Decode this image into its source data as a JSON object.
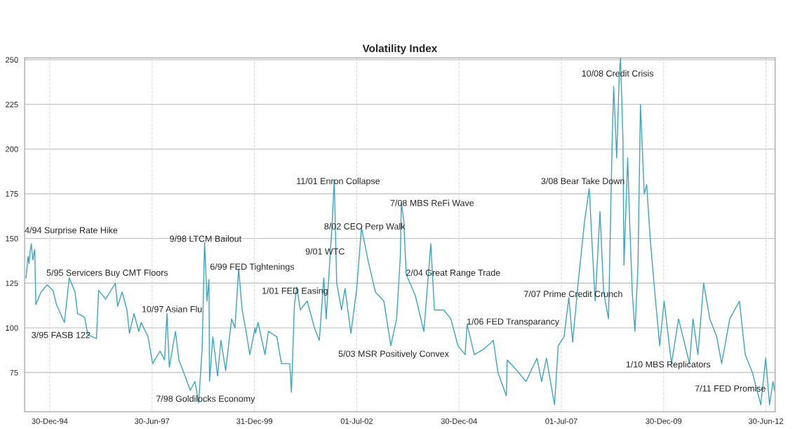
{
  "chart_data": {
    "type": "line",
    "title": "Volatility Index",
    "x": [
      "1994-06-01",
      "1994-06-20",
      "1994-06-28",
      "1994-07-08",
      "1994-07-18",
      "1994-08-01",
      "1994-08-18",
      "1994-08-28",
      "1994-10-13",
      "1994-12-06",
      "1995-01-28",
      "1995-02-28",
      "1995-05-10",
      "1995-06-22",
      "1995-08-13",
      "1995-09-04",
      "1995-11-06",
      "1995-12-06",
      "1996-02-20",
      "1996-03-10",
      "1996-05-12",
      "1996-08-06",
      "1996-08-27",
      "1996-10-06",
      "1996-11-18",
      "1996-12-10",
      "1997-01-20",
      "1997-03-03",
      "1997-03-25",
      "1997-05-25",
      "1997-07-05",
      "1997-09-10",
      "1997-10-20",
      "1997-11-10",
      "1997-12-01",
      "1998-01-25",
      "1998-02-25",
      "1998-04-27",
      "1998-06-06",
      "1998-07-18",
      "1998-08-20",
      "1998-09-20",
      "1998-10-12",
      "1998-11-03",
      "1998-11-20",
      "1998-11-25",
      "1998-12-25",
      "1999-02-05",
      "1999-03-07",
      "1999-04-18",
      "1999-06-10",
      "1999-07-10",
      "1999-08-12",
      "1999-09-12",
      "1999-10-12",
      "1999-11-20",
      "2000-01-05",
      "2000-01-10",
      "2000-02-01",
      "2000-04-03",
      "2000-05-03",
      "2000-07-18",
      "2000-08-28",
      "2000-11-10",
      "2000-11-25",
      "2000-12-22",
      "2001-01-12",
      "2001-02-12",
      "2001-04-15",
      "2001-06-18",
      "2001-08-01",
      "2001-09-10",
      "2001-10-01",
      "2001-11-25",
      "2001-12-12",
      "2002-01-03",
      "2002-02-15",
      "2002-03-18",
      "2002-05-10",
      "2002-07-01",
      "2002-08-12",
      "2002-10-12",
      "2002-12-15",
      "2003-02-28",
      "2003-05-01",
      "2003-06-22",
      "2003-07-25",
      "2003-08-03",
      "2003-08-25",
      "2003-09-15",
      "2003-12-06",
      "2004-02-20",
      "2004-04-22",
      "2004-05-24",
      "2004-08-15",
      "2004-10-18",
      "2004-12-20",
      "2005-02-22",
      "2005-03-12",
      "2005-05-15",
      "2005-08-06",
      "2005-11-01",
      "2005-12-12",
      "2006-02-25",
      "2006-03-05",
      "2006-05-05",
      "2006-08-20",
      "2006-11-25",
      "2007-01-06",
      "2007-02-18",
      "2007-05-01",
      "2007-06-03",
      "2007-07-25",
      "2007-09-06",
      "2007-10-10",
      "2007-12-01",
      "2008-01-25",
      "2008-03-06",
      "2008-04-06",
      "2008-04-28",
      "2008-06-10",
      "2008-07-12",
      "2008-08-25",
      "2008-09-25",
      "2008-10-10",
      "2008-11-06",
      "2008-11-28",
      "2008-12-10",
      "2009-01-01",
      "2009-01-10",
      "2009-02-12",
      "2009-03-04",
      "2009-03-25",
      "2009-04-18",
      "2009-05-15",
      "2009-06-06",
      "2009-07-10",
      "2009-08-01",
      "2009-09-01",
      "2009-10-12",
      "2009-11-25",
      "2010-01-03",
      "2010-03-10",
      "2010-05-12",
      "2010-08-18",
      "2010-09-18",
      "2010-11-01",
      "2010-12-22",
      "2011-02-15",
      "2011-04-18",
      "2011-06-01",
      "2011-08-12",
      "2011-11-06",
      "2011-12-28",
      "2012-03-01",
      "2012-05-15",
      "2012-06-28",
      "2012-08-01",
      "2012-09-01",
      "2012-09-15"
    ],
    "series": [
      {
        "color": "#3aa6c0",
        "values": [
          128,
          140,
          136,
          143,
          147,
          138,
          144,
          113,
          120,
          124,
          121,
          113,
          103,
          128,
          120,
          108,
          106,
          96,
          94,
          121,
          116,
          125,
          112,
          120,
          110,
          97,
          108,
          98,
          103,
          95,
          80,
          87,
          82,
          108,
          78,
          98,
          82,
          72,
          65,
          70,
          58,
          88,
          148,
          115,
          127,
          70,
          95,
          73,
          93,
          76,
          105,
          100,
          133,
          110,
          100,
          85,
          100,
          97,
          103,
          85,
          98,
          95,
          80,
          80,
          64,
          113,
          123,
          110,
          115,
          100,
          93,
          128,
          105,
          160,
          183,
          125,
          110,
          122,
          97,
          122,
          156,
          137,
          120,
          115,
          90,
          105,
          140,
          170,
          160,
          130,
          118,
          98,
          147,
          110,
          110,
          105,
          90,
          85,
          102,
          85,
          88,
          93,
          75,
          62,
          82,
          78,
          70,
          83,
          70,
          83,
          57,
          90,
          95,
          117,
          92,
          127,
          160,
          178,
          140,
          115,
          165,
          120,
          105,
          200,
          235,
          195,
          240,
          251,
          205,
          135,
          195,
          155,
          120,
          98,
          135,
          225,
          175,
          180,
          150,
          120,
          90,
          115,
          80,
          105,
          80,
          105,
          85,
          125,
          105,
          95,
          80,
          105,
          115,
          85,
          75,
          57,
          83,
          57,
          70,
          65
        ]
      }
    ],
    "xlim": [
      "1994-05-20",
      "2012-09-20"
    ],
    "ylim": [
      53,
      251
    ],
    "xticks": [
      {
        "value": "1994-12-30",
        "label": "30-Dec-94"
      },
      {
        "value": "1997-06-30",
        "label": "30-Jun-97"
      },
      {
        "value": "1999-12-31",
        "label": "31-Dec-99"
      },
      {
        "value": "2002-07-01",
        "label": "01-Jul-02"
      },
      {
        "value": "2004-12-30",
        "label": "30-Dec-04"
      },
      {
        "value": "2007-07-01",
        "label": "01-Jul-07"
      },
      {
        "value": "2009-12-30",
        "label": "30-Dec-09"
      },
      {
        "value": "2012-06-30",
        "label": "30-Jun-12"
      }
    ],
    "yticks": [
      75,
      100,
      125,
      150,
      175,
      200,
      225,
      250
    ],
    "grid": true,
    "marker": "none",
    "line_style": "solid",
    "annotations": [
      "4/94 Surprise Rate Hike",
      "5/95 Servicers Buy CMT Floors",
      "3/95 FASB 122",
      "10/97 Asian Flu",
      "7/98 Goldilocks Economy",
      "9/98 LTCM Bailout",
      "6/99 FED Tightenings",
      "1/01 FED Easing",
      "9/01 WTC",
      "11/01 Enron Collapse",
      "8/02 CEO Perp Walk",
      "7/08 MBS ReFi Wave",
      "2/04 Great Range Trade",
      "5/03 MSR Positively Convex",
      "1/06 FED Transparancy",
      "7/07 Prime Credit Crunch",
      "3/08 Bear Take Down",
      "10/08 Credit Crisis",
      "1/10 MBS Replicators",
      "7/11 FED Promise"
    ]
  }
}
